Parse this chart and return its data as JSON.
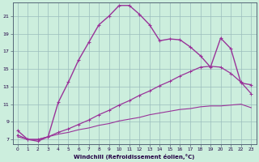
{
  "xlabel": "Windchill (Refroidissement éolien,°C)",
  "bg_color": "#cceedd",
  "line_color": "#993399",
  "xlim": [
    -0.5,
    23.5
  ],
  "ylim": [
    6.5,
    22.5
  ],
  "xticks": [
    0,
    1,
    2,
    3,
    4,
    5,
    6,
    7,
    8,
    9,
    10,
    11,
    12,
    13,
    14,
    15,
    16,
    17,
    18,
    19,
    20,
    21,
    22,
    23
  ],
  "yticks": [
    7,
    9,
    11,
    13,
    15,
    17,
    19,
    21
  ],
  "series1_x": [
    0,
    1,
    2,
    3,
    4,
    5,
    6,
    7,
    8,
    9,
    10,
    11,
    12,
    13,
    14,
    15,
    16,
    17,
    18,
    19,
    20,
    21,
    22,
    23
  ],
  "series1_y": [
    8.0,
    7.0,
    6.8,
    7.3,
    11.2,
    13.5,
    16.0,
    18.0,
    20.0,
    21.0,
    22.2,
    22.2,
    21.2,
    20.0,
    18.2,
    18.4,
    18.3,
    17.5,
    16.5,
    15.2,
    18.5,
    17.3,
    13.4,
    13.2
  ],
  "series2_x": [
    0,
    1,
    2,
    3,
    4,
    5,
    6,
    7,
    8,
    9,
    10,
    11,
    12,
    13,
    14,
    15,
    16,
    17,
    18,
    19,
    20,
    21,
    22,
    23
  ],
  "series2_y": [
    7.5,
    7.0,
    7.0,
    7.3,
    7.8,
    8.2,
    8.7,
    9.2,
    9.8,
    10.3,
    10.9,
    11.4,
    12.0,
    12.5,
    13.1,
    13.6,
    14.2,
    14.7,
    15.2,
    15.3,
    15.2,
    14.5,
    13.5,
    12.2
  ],
  "series3_x": [
    0,
    1,
    2,
    3,
    4,
    5,
    6,
    7,
    8,
    9,
    10,
    11,
    12,
    13,
    14,
    15,
    16,
    17,
    18,
    19,
    20,
    21,
    22,
    23
  ],
  "series3_y": [
    7.3,
    7.0,
    7.0,
    7.3,
    7.6,
    7.8,
    8.1,
    8.3,
    8.6,
    8.8,
    9.1,
    9.3,
    9.5,
    9.8,
    10.0,
    10.2,
    10.4,
    10.5,
    10.7,
    10.8,
    10.8,
    10.9,
    11.0,
    10.6
  ]
}
